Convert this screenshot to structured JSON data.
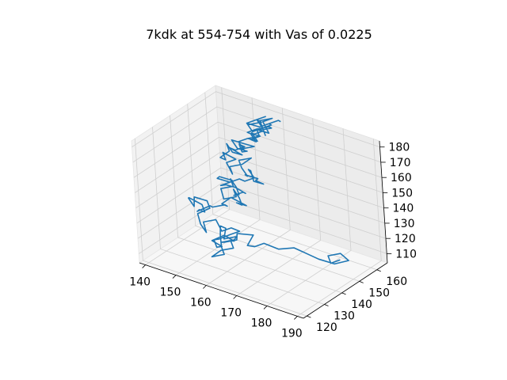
{
  "chart_data": {
    "type": "line",
    "projection": "3d",
    "title": "7kdk at 554-754 with Vas of 0.0225",
    "xlabel": "",
    "ylabel": "",
    "zlabel": "",
    "xlim": [
      138,
      192
    ],
    "ylim": [
      118,
      166
    ],
    "zlim": [
      104,
      184
    ],
    "xticks": [
      "140",
      "150",
      "160",
      "170",
      "180",
      "190"
    ],
    "yticks": [
      "120",
      "130",
      "140",
      "150",
      "160"
    ],
    "zticks": [
      "110",
      "120",
      "130",
      "140",
      "150",
      "160",
      "170",
      "180"
    ],
    "grid": true,
    "series_color": "#1f77b4",
    "series": [
      {
        "x": [
          186,
          184,
          182,
          185,
          187,
          184,
          180,
          176,
          172,
          168,
          165,
          163,
          160,
          161,
          158,
          159,
          156,
          157,
          160,
          162,
          159,
          158,
          155,
          156,
          158,
          160,
          157,
          159,
          162,
          160,
          163,
          161,
          158,
          160,
          157,
          155,
          158,
          160,
          162,
          158,
          156,
          153,
          150,
          152,
          149,
          147,
          150,
          148,
          145,
          146,
          143,
          142,
          145,
          147,
          144,
          142,
          141,
          144,
          146,
          149,
          151,
          148,
          150,
          152,
          155,
          153,
          156,
          154,
          151,
          153,
          150,
          148,
          151,
          149,
          152,
          154,
          151,
          153,
          155,
          153,
          151,
          148,
          150,
          152,
          149,
          147,
          150,
          152,
          155,
          157,
          154,
          156,
          158,
          160,
          157,
          155,
          157,
          154,
          156,
          153,
          151,
          154,
          152,
          149,
          151,
          148,
          150,
          147,
          149,
          146,
          148,
          146,
          149,
          151,
          149,
          147,
          150,
          152,
          149,
          151,
          154,
          152,
          149,
          152,
          154,
          151,
          153,
          150,
          152,
          155,
          153,
          156,
          153,
          155,
          152,
          154,
          151,
          153,
          156,
          154,
          157,
          155,
          152,
          154,
          157,
          159,
          156,
          158,
          155,
          157,
          154,
          156,
          158,
          156,
          153,
          155,
          157,
          154,
          152,
          155,
          157,
          159,
          157,
          155,
          152,
          154,
          156,
          154,
          152,
          155,
          157,
          159,
          161
        ],
        "y": [
          150,
          148,
          150,
          152,
          153,
          150,
          148,
          148,
          148,
          146,
          143,
          141,
          142,
          144,
          140,
          138,
          136,
          133,
          135,
          133,
          131,
          134,
          136,
          134,
          131,
          129,
          127,
          129,
          131,
          133,
          130,
          128,
          126,
          128,
          130,
          132,
          130,
          133,
          135,
          137,
          135,
          137,
          135,
          133,
          135,
          137,
          139,
          141,
          139,
          137,
          139,
          141,
          143,
          141,
          143,
          145,
          147,
          149,
          147,
          149,
          147,
          149,
          151,
          149,
          151,
          149,
          147,
          149,
          151,
          149,
          147,
          149,
          151,
          153,
          151,
          149,
          151,
          153,
          151,
          149,
          147,
          149,
          151,
          149,
          147,
          149,
          151,
          153,
          151,
          153,
          155,
          153,
          151,
          153,
          155,
          157,
          155,
          153,
          151,
          153,
          155,
          157,
          155,
          153,
          151,
          153,
          155,
          153,
          151,
          153,
          155,
          157,
          155,
          157,
          159,
          157,
          155,
          157,
          159,
          157,
          155,
          153,
          155,
          157,
          159,
          157,
          155,
          157,
          159,
          161,
          159,
          157,
          159,
          161,
          159,
          161,
          163,
          161,
          159,
          161,
          159,
          157,
          159,
          161,
          163,
          161,
          159,
          161,
          163,
          165,
          163,
          161,
          159,
          161,
          163,
          161,
          159,
          157,
          159,
          161,
          163,
          161,
          159,
          157,
          159,
          161,
          163,
          161,
          159,
          161,
          163,
          165,
          163
        ],
        "z": [
          114,
          112,
          114,
          116,
          112,
          110,
          112,
          113,
          114,
          112,
          116,
          114,
          112,
          118,
          120,
          118,
          116,
          119,
          121,
          126,
          124,
          128,
          126,
          122,
          118,
          116,
          114,
          118,
          120,
          122,
          126,
          130,
          126,
          122,
          118,
          120,
          124,
          126,
          128,
          126,
          124,
          128,
          126,
          122,
          124,
          128,
          132,
          134,
          136,
          132,
          134,
          132,
          128,
          126,
          124,
          120,
          118,
          122,
          124,
          126,
          128,
          126,
          130,
          132,
          128,
          130,
          132,
          134,
          136,
          134,
          132,
          136,
          138,
          140,
          138,
          136,
          132,
          134,
          136,
          140,
          142,
          138,
          140,
          144,
          146,
          142,
          140,
          142,
          144,
          146,
          148,
          150,
          146,
          144,
          142,
          140,
          144,
          146,
          148,
          150,
          152,
          154,
          150,
          148,
          146,
          150,
          152,
          156,
          154,
          152,
          156,
          158,
          156,
          154,
          152,
          156,
          158,
          160,
          158,
          156,
          160,
          162,
          164,
          162,
          160,
          158,
          160,
          162,
          164,
          166,
          164,
          166,
          168,
          166,
          164,
          162,
          164,
          166,
          168,
          170,
          172,
          170,
          168,
          170,
          172,
          174,
          172,
          170,
          174,
          176,
          174,
          172,
          170,
          172,
          174,
          176,
          178,
          176,
          174,
          172,
          174,
          176,
          174,
          172,
          174,
          176,
          178,
          176,
          174,
          172,
          174,
          176,
          178
        ]
      }
    ]
  }
}
